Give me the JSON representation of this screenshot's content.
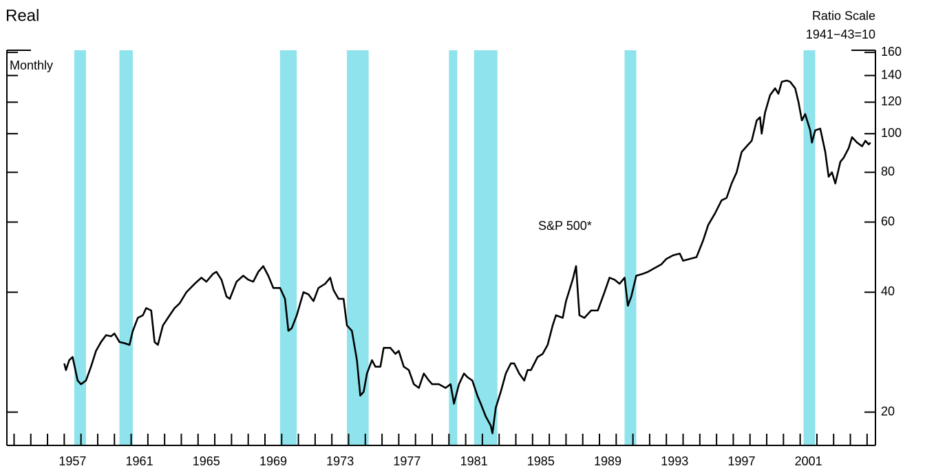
{
  "chart_data": {
    "type": "line",
    "title": "Real",
    "scale_note": "Ratio Scale",
    "base_note": "1941−43=10",
    "frequency_label": "Monthly",
    "series_label": "S&P 500*",
    "log_scale": true,
    "xlim": [
      1953.57,
      2005.5
    ],
    "xticks": [
      1957,
      1961,
      1965,
      1969,
      1973,
      1977,
      1981,
      1985,
      1989,
      1993,
      1997,
      2001
    ],
    "xminor_ticks": [
      1954,
      1955,
      1956,
      1957,
      1958,
      1959,
      1960,
      1961,
      1962,
      1963,
      1964,
      1965,
      1966,
      1967,
      1968,
      1969,
      1970,
      1971,
      1972,
      1973,
      1974,
      1975,
      1976,
      1977,
      1978,
      1979,
      1980,
      1981,
      1982,
      1983,
      1984,
      1985,
      1986,
      1987,
      1988,
      1989,
      1990,
      1991,
      1992,
      1993,
      1994,
      1995,
      1996,
      1997,
      1998,
      1999,
      2000,
      2001,
      2002,
      2003,
      2004,
      2005
    ],
    "ylim": [
      16.5,
      162
    ],
    "yticks": [
      20,
      40,
      60,
      80,
      100,
      120,
      140,
      160
    ],
    "shading_color": "#8fe3ec",
    "recessions": [
      [
        1957.6,
        1958.3
      ],
      [
        1960.3,
        1961.1
      ],
      [
        1969.9,
        1970.9
      ],
      [
        1973.9,
        1975.2
      ],
      [
        1980.0,
        1980.5
      ],
      [
        1981.5,
        1982.9
      ],
      [
        1990.5,
        1991.2
      ],
      [
        2001.2,
        2001.9
      ]
    ],
    "series": [
      {
        "name": "S&P 500*",
        "color": "#000000",
        "x": [
          1957.0,
          1957.1,
          1957.3,
          1957.5,
          1957.8,
          1958.0,
          1958.3,
          1958.6,
          1958.9,
          1959.2,
          1959.5,
          1959.8,
          1960.0,
          1960.3,
          1960.6,
          1960.9,
          1961.1,
          1961.4,
          1961.7,
          1961.9,
          1962.2,
          1962.4,
          1962.6,
          1962.9,
          1963.3,
          1963.6,
          1963.9,
          1964.3,
          1964.8,
          1965.2,
          1965.5,
          1965.9,
          1966.1,
          1966.4,
          1966.7,
          1966.9,
          1967.3,
          1967.7,
          1968.0,
          1968.3,
          1968.6,
          1968.9,
          1969.2,
          1969.5,
          1969.9,
          1970.2,
          1970.4,
          1970.6,
          1970.9,
          1971.3,
          1971.6,
          1971.9,
          1972.2,
          1972.6,
          1972.9,
          1973.1,
          1973.4,
          1973.7,
          1973.9,
          1974.2,
          1974.5,
          1974.7,
          1974.9,
          1975.1,
          1975.4,
          1975.6,
          1975.9,
          1976.1,
          1976.5,
          1976.8,
          1977.0,
          1977.3,
          1977.6,
          1977.9,
          1978.2,
          1978.5,
          1978.8,
          1979.0,
          1979.4,
          1979.8,
          1980.1,
          1980.3,
          1980.6,
          1980.9,
          1981.1,
          1981.4,
          1981.7,
          1981.9,
          1982.2,
          1982.5,
          1982.6,
          1982.8,
          1983.1,
          1983.4,
          1983.7,
          1983.9,
          1984.2,
          1984.5,
          1984.7,
          1984.9,
          1985.3,
          1985.6,
          1985.9,
          1986.2,
          1986.4,
          1986.8,
          1987.0,
          1987.4,
          1987.6,
          1987.8,
          1988.1,
          1988.5,
          1988.9,
          1989.3,
          1989.6,
          1989.9,
          1990.2,
          1990.5,
          1990.7,
          1990.9,
          1991.2,
          1991.6,
          1991.9,
          1992.3,
          1992.7,
          1993.0,
          1993.4,
          1993.8,
          1994.0,
          1994.4,
          1994.8,
          1995.2,
          1995.5,
          1995.9,
          1996.3,
          1996.6,
          1996.9,
          1997.2,
          1997.5,
          1997.8,
          1998.1,
          1998.4,
          1998.6,
          1998.7,
          1998.9,
          1999.2,
          1999.5,
          1999.7,
          1999.9,
          2000.2,
          2000.4,
          2000.7,
          2000.9,
          2001.1,
          2001.3,
          2001.6,
          2001.7,
          2001.9,
          2002.2,
          2002.5,
          2002.7,
          2002.9,
          2003.1,
          2003.4,
          2003.6,
          2003.9,
          2004.1,
          2004.4,
          2004.7,
          2004.9,
          2005.1,
          2005.2
        ],
        "values": [
          26.5,
          25.5,
          27,
          27.5,
          24,
          23.5,
          24,
          26,
          28.5,
          30,
          31.2,
          31,
          31.5,
          30,
          29.8,
          29.5,
          32,
          34.5,
          35,
          36.5,
          36,
          30,
          29.5,
          33,
          35,
          36.5,
          37.5,
          40,
          42,
          43.5,
          42.5,
          44.5,
          45,
          43,
          39,
          38.5,
          42.5,
          44,
          43,
          42.5,
          45,
          46.5,
          44,
          41,
          41,
          38.5,
          32,
          32.5,
          35,
          40,
          39.5,
          38,
          41,
          42,
          43.5,
          40.5,
          38.5,
          38.5,
          33,
          32,
          27,
          22,
          22.5,
          25,
          27,
          26,
          26,
          29,
          29,
          28,
          28.5,
          26,
          25.5,
          23.5,
          23,
          25,
          24,
          23.5,
          23.5,
          23,
          23.5,
          21,
          23.5,
          25,
          24.5,
          24,
          22,
          21,
          19.5,
          18.5,
          17.7,
          20.5,
          22.5,
          25,
          26.5,
          26.5,
          25,
          24,
          25.5,
          25.5,
          27.5,
          28,
          29.5,
          33,
          35,
          34.5,
          38,
          43,
          46.5,
          35,
          34.5,
          36,
          36,
          40,
          43.5,
          43,
          42,
          43.5,
          37,
          39,
          44,
          44.5,
          45,
          46,
          47,
          48.5,
          49.5,
          50,
          48,
          48.5,
          49,
          54,
          59,
          63,
          68,
          69,
          75,
          80,
          90,
          93,
          96,
          108,
          110,
          100,
          113,
          125,
          130,
          126,
          135,
          136,
          135,
          130,
          120,
          108,
          112,
          102,
          95,
          102,
          103,
          90,
          78,
          80,
          75,
          85,
          87,
          92,
          98,
          95,
          93,
          96,
          94,
          95
        ]
      }
    ]
  }
}
